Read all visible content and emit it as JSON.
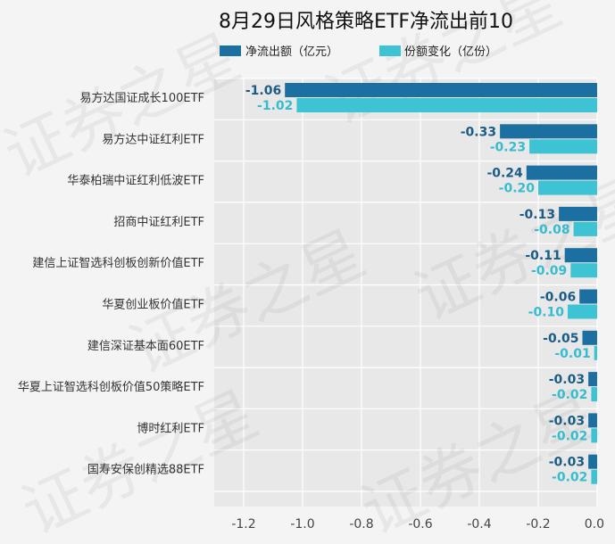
{
  "chart_data": {
    "type": "bar",
    "orientation": "horizontal",
    "title": "8月29日风格策略ETF净流出前10",
    "categories": [
      "易方达国证成长100ETF",
      "易方达中证红利ETF",
      "华泰柏瑞中证红利低波ETF",
      "招商中证红利ETF",
      "建信上证智选科创板创新价值ETF",
      "华夏创业板价值ETF",
      "建信深证基本面60ETF",
      "华夏上证智选科创板价值50策略ETF",
      "博时红利ETF",
      "国寿安保创精选88ETF"
    ],
    "series": [
      {
        "name": "净流出额（亿元）",
        "color": "#1c6fa1",
        "values": [
          -1.06,
          -0.33,
          -0.24,
          -0.13,
          -0.11,
          -0.06,
          -0.05,
          -0.03,
          -0.03,
          -0.03
        ],
        "labels": [
          "-1.06",
          "-0.33",
          "-0.24",
          "-0.13",
          "-0.11",
          "-0.06",
          "-0.05",
          "-0.03",
          "-0.03",
          "-0.03"
        ]
      },
      {
        "name": "份额变化（亿份）",
        "color": "#3ec3d5",
        "values": [
          -1.02,
          -0.23,
          -0.2,
          -0.08,
          -0.09,
          -0.1,
          -0.01,
          -0.02,
          -0.02,
          -0.02
        ],
        "labels": [
          "-1.02",
          "-0.23",
          "-0.20",
          "-0.08",
          "-0.09",
          "-0.10",
          "-0.01",
          "-0.02",
          "-0.02",
          "-0.02"
        ]
      }
    ],
    "xlim": [
      -1.3,
      0.0
    ],
    "xticks": [
      -1.2,
      -1.0,
      -0.8,
      -0.6,
      -0.4,
      -0.2,
      0.0
    ],
    "xtick_labels": [
      "-1.2",
      "-1.0",
      "-0.8",
      "-0.6",
      "-0.4",
      "-0.2",
      "0.0"
    ],
    "xlabel": "",
    "ylabel": "",
    "grid": true,
    "legend_position": "top"
  },
  "watermark": "证券之星"
}
